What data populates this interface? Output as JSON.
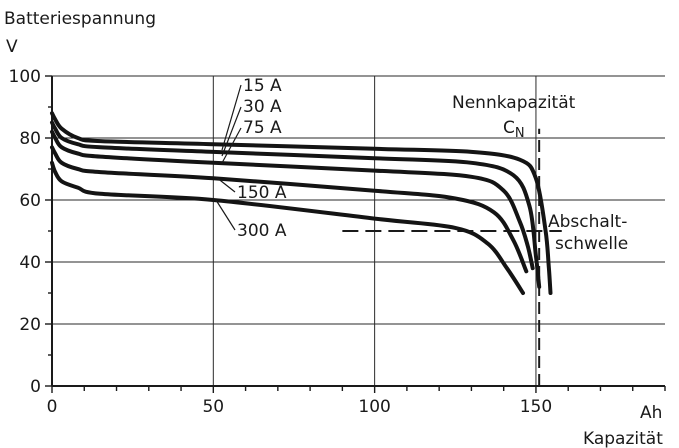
{
  "chart_data": {
    "type": "line",
    "ylabel": "Batteriespannung",
    "yunit": "V",
    "xlabel": "Kapazität",
    "xunit": "Ah",
    "xlim": [
      0,
      190
    ],
    "ylim": [
      0,
      100
    ],
    "x_ticks": [
      0,
      50,
      100,
      150
    ],
    "y_ticks": [
      0,
      20,
      40,
      60,
      80,
      100
    ],
    "grid": true,
    "series": [
      {
        "name": "15 A",
        "x": [
          0,
          1,
          3,
          8,
          15,
          50,
          100,
          130,
          145,
          150,
          153,
          154,
          154.5
        ],
        "y": [
          88,
          86,
          83,
          80,
          79,
          78,
          76.5,
          75.5,
          73,
          67,
          50,
          38,
          30
        ]
      },
      {
        "name": "30 A",
        "x": [
          0,
          1,
          3,
          8,
          15,
          50,
          100,
          130,
          143,
          148,
          150,
          151
        ],
        "y": [
          85,
          83,
          80,
          78,
          77,
          75.5,
          73.5,
          72,
          68,
          58,
          42,
          32
        ]
      },
      {
        "name": "75 A",
        "x": [
          0,
          1,
          3,
          8,
          15,
          50,
          100,
          130,
          140,
          145,
          147.5,
          149
        ],
        "y": [
          82,
          80,
          77,
          75,
          74,
          72,
          69.5,
          67.5,
          63,
          53,
          45,
          38
        ]
      },
      {
        "name": "150 A",
        "x": [
          0,
          1,
          3,
          8,
          15,
          50,
          100,
          125,
          137,
          143,
          147
        ],
        "y": [
          77,
          75,
          72,
          70,
          69,
          67,
          63,
          60.5,
          56,
          47,
          37
        ]
      },
      {
        "name": "300 A",
        "x": [
          0,
          1,
          3,
          8,
          15,
          50,
          100,
          125,
          135,
          141,
          146
        ],
        "y": [
          72,
          69,
          66,
          64,
          62,
          60,
          54,
          51,
          46,
          38,
          30
        ]
      }
    ],
    "reference_lines": [
      {
        "label": "Nennkapazität",
        "symbol": "C",
        "subscript": "N",
        "axis": "x",
        "value": 151,
        "from": 0,
        "to": 83
      },
      {
        "label": "Abschalt-\nschwelle",
        "axis": "y",
        "value": 50,
        "from": 90,
        "to": 158
      }
    ]
  }
}
